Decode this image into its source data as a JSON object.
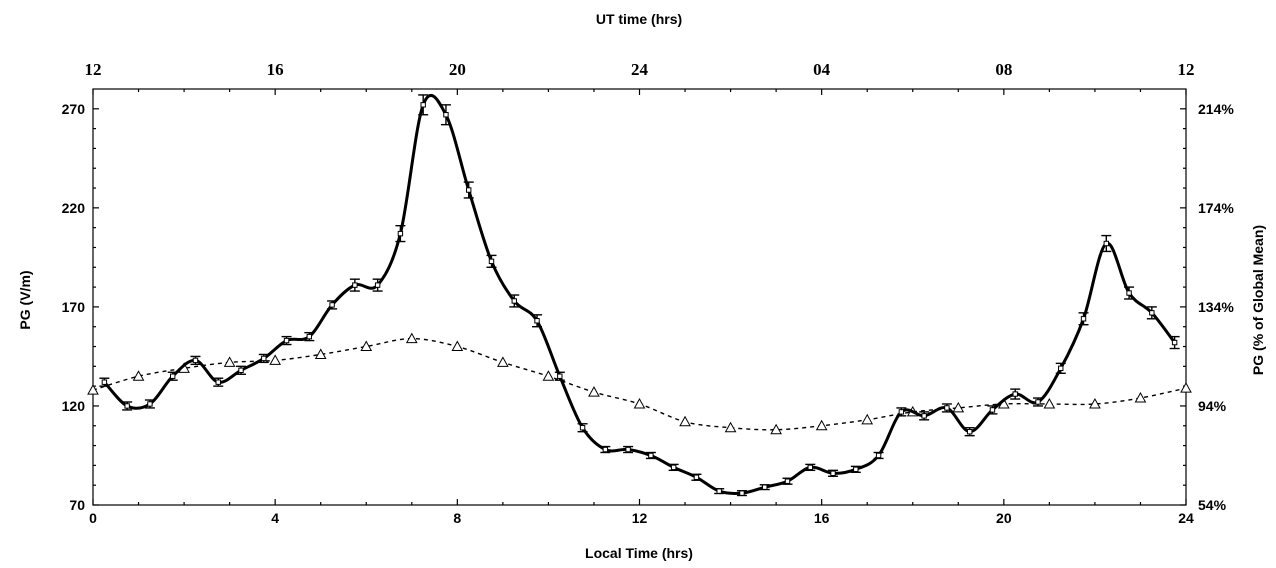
{
  "chart_data": {
    "type": "line",
    "xlabel": "Local Time (hrs)",
    "ylabel": "PG (V/m)",
    "y2label": "PG (% of Global Mean)",
    "x2label": "UT time (hrs)",
    "xlim": [
      0,
      24
    ],
    "ylim": [
      70,
      280
    ],
    "x_ticks": [
      "0",
      "4",
      "8",
      "12",
      "16",
      "20",
      "24"
    ],
    "y_ticks": [
      "70",
      "120",
      "170",
      "220",
      "270"
    ],
    "y2_ticks": [
      "54%",
      "94%",
      "134%",
      "174%",
      "214%"
    ],
    "x2_ticks": [
      "12",
      "16",
      "20",
      "24",
      "04",
      "08",
      "12"
    ],
    "grid": false,
    "legend": "none",
    "series": [
      {
        "style": "solid-line-square-markers-with-error-bars",
        "x": [
          0.25,
          0.75,
          1.25,
          1.75,
          2.25,
          2.75,
          3.25,
          3.75,
          4.25,
          4.75,
          5.25,
          5.75,
          6.25,
          6.75,
          7.25,
          7.75,
          8.25,
          8.75,
          9.25,
          9.75,
          10.25,
          10.75,
          11.25,
          11.75,
          12.25,
          12.75,
          13.25,
          13.75,
          14.25,
          14.75,
          15.25,
          15.75,
          16.25,
          16.75,
          17.25,
          17.75,
          18.25,
          18.75,
          19.25,
          19.75,
          20.25,
          20.75,
          21.25,
          21.75,
          22.25,
          22.75,
          23.25,
          23.75
        ],
        "y": [
          132,
          120,
          121,
          135,
          143,
          132,
          138,
          144,
          153,
          155,
          171,
          181,
          181,
          207,
          272,
          267,
          229,
          193,
          173,
          163,
          135,
          109,
          98,
          98,
          95,
          89,
          84,
          77,
          76,
          79,
          82,
          89,
          86,
          88,
          95,
          117,
          115,
          119,
          107,
          118,
          126,
          122,
          139,
          164,
          202,
          177,
          167,
          152
        ],
        "err": [
          2,
          2,
          2,
          2,
          2,
          2,
          2,
          2,
          2,
          2,
          2,
          3,
          3,
          4,
          5,
          5,
          4,
          3,
          3,
          3,
          2,
          2,
          1.5,
          1.5,
          1.5,
          1.5,
          1.5,
          1.2,
          1.2,
          1.2,
          1.5,
          1.5,
          1.5,
          1.5,
          1.5,
          2,
          2,
          2,
          2,
          2,
          2.5,
          2,
          2.5,
          3,
          4,
          3,
          3,
          3
        ]
      },
      {
        "style": "dashed-line-triangle-markers",
        "x": [
          0,
          1,
          2,
          3,
          4,
          5,
          6,
          7,
          8,
          9,
          10,
          11,
          12,
          13,
          14,
          15,
          16,
          17,
          18,
          19,
          20,
          21,
          22,
          23,
          24
        ],
        "y": [
          128,
          135,
          139,
          142,
          143,
          146,
          150,
          154,
          150,
          142,
          135,
          127,
          121,
          112,
          109,
          108,
          110,
          113,
          117,
          119,
          121,
          121,
          121,
          124,
          129
        ]
      }
    ]
  }
}
